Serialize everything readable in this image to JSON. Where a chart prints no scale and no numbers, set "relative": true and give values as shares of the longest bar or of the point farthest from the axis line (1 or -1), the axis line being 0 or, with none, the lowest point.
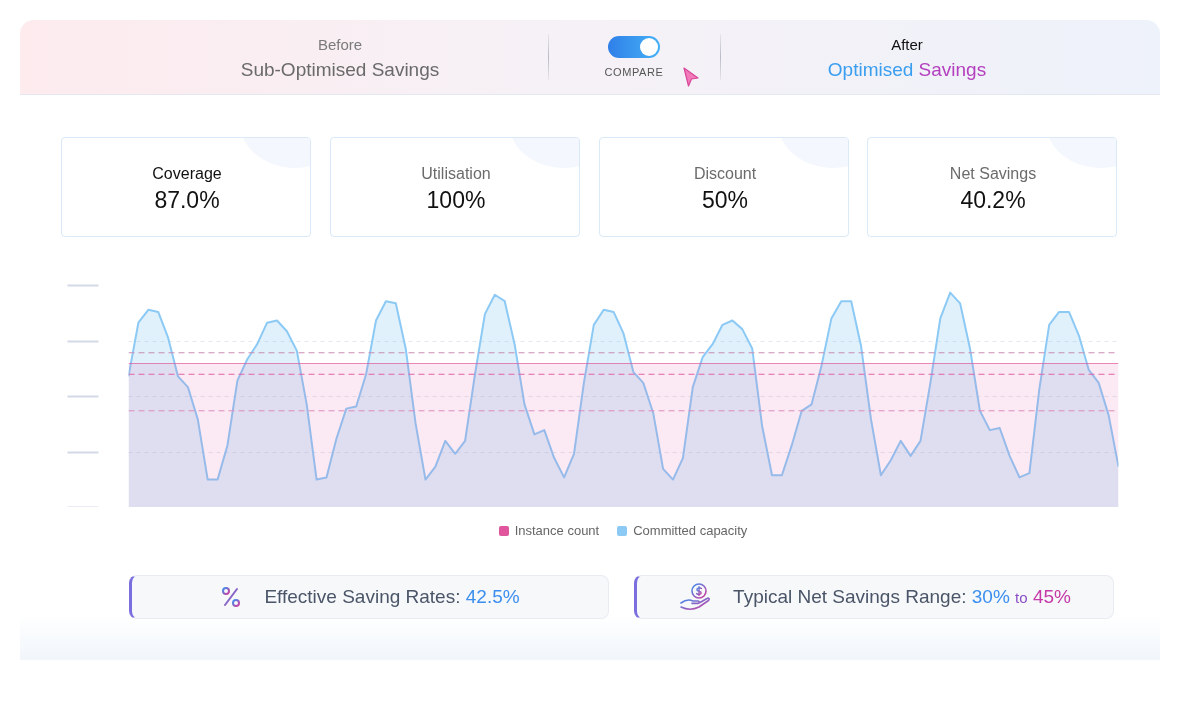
{
  "chart_data": [
    {
      "type": "other",
      "annotations": [
        "Before",
        "Sub-Optimised Savings",
        "COMPARE",
        "After",
        "Optimised Savings"
      ]
    },
    {
      "type": "other",
      "annotations": [
        "Coverage",
        "87.0%",
        "Utilisation",
        "100%",
        "Discount",
        "50%",
        "Net Savings",
        "40.2%"
      ]
    },
    {
      "type": "area",
      "relative": true,
      "categories": [
        null,
        null,
        null,
        null,
        null,
        null,
        null,
        null,
        null,
        null,
        null,
        null,
        null,
        null,
        null,
        null,
        null,
        null,
        null,
        null,
        null,
        null,
        null,
        null,
        null,
        null,
        null,
        null,
        null,
        null,
        null,
        null,
        null,
        null,
        null,
        null,
        null,
        null,
        null,
        null,
        null,
        null,
        null,
        null,
        null,
        null,
        null,
        null,
        null,
        null,
        null,
        null,
        null,
        null,
        null,
        null,
        null,
        null,
        null,
        null,
        null,
        null,
        null,
        null,
        null,
        null,
        null,
        null,
        null,
        null,
        null,
        null,
        null,
        null,
        null,
        null,
        null,
        null,
        null,
        null,
        null,
        null,
        null,
        null,
        null,
        null,
        null,
        null,
        null,
        null,
        null,
        null,
        null,
        null,
        null,
        null,
        null,
        null,
        null,
        null,
        null
      ],
      "series": [
        {
          "name": "Instance count",
          "color": "#e0559b",
          "values": [
            0.67,
            0.67,
            0.67,
            0.67,
            0.67,
            0.67,
            0.67,
            0.67,
            0.67,
            0.67,
            0.67,
            0.67,
            0.67,
            0.67,
            0.67,
            0.67,
            0.67,
            0.67,
            0.67,
            0.67,
            0.67,
            0.67,
            0.67,
            0.67,
            0.67,
            0.67,
            0.67,
            0.67,
            0.67,
            0.67,
            0.67,
            0.67,
            0.67,
            0.67,
            0.67,
            0.67,
            0.67,
            0.67,
            0.67,
            0.67,
            0.67,
            0.67,
            0.67,
            0.67,
            0.67,
            0.67,
            0.67,
            0.67,
            0.67,
            0.67,
            0.67,
            0.67,
            0.67,
            0.67,
            0.67,
            0.67,
            0.67,
            0.67,
            0.67,
            0.67,
            0.67,
            0.67,
            0.67,
            0.67,
            0.67,
            0.67,
            0.67,
            0.67,
            0.67,
            0.67,
            0.67,
            0.67,
            0.67,
            0.67,
            0.67,
            0.67,
            0.67,
            0.67,
            0.67,
            0.67,
            0.67,
            0.67,
            0.67,
            0.67,
            0.67,
            0.67,
            0.67,
            0.67,
            0.67,
            0.67,
            0.67,
            0.67,
            0.67,
            0.67,
            0.67,
            0.67,
            0.67,
            0.67,
            0.67,
            0.67,
            0.67
          ]
        },
        {
          "name": "Committed capacity",
          "color": "#8ccaf5",
          "values": [
            0.61,
            0.86,
            0.92,
            0.91,
            0.79,
            0.61,
            0.56,
            0.41,
            0.13,
            0.13,
            0.29,
            0.59,
            0.69,
            0.76,
            0.86,
            0.87,
            0.82,
            0.73,
            0.48,
            0.13,
            0.14,
            0.32,
            0.46,
            0.47,
            0.62,
            0.87,
            0.96,
            0.95,
            0.74,
            0.39,
            0.13,
            0.19,
            0.31,
            0.25,
            0.31,
            0.62,
            0.9,
            0.99,
            0.96,
            0.76,
            0.48,
            0.34,
            0.36,
            0.23,
            0.14,
            0.25,
            0.58,
            0.85,
            0.92,
            0.91,
            0.81,
            0.63,
            0.58,
            0.44,
            0.18,
            0.13,
            0.23,
            0.56,
            0.7,
            0.76,
            0.85,
            0.87,
            0.83,
            0.74,
            0.38,
            0.15,
            0.15,
            0.29,
            0.45,
            0.48,
            0.66,
            0.88,
            0.96,
            0.96,
            0.75,
            0.41,
            0.15,
            0.22,
            0.31,
            0.24,
            0.31,
            0.58,
            0.88,
            1.0,
            0.95,
            0.74,
            0.45,
            0.36,
            0.37,
            0.24,
            0.14,
            0.16,
            0.55,
            0.85,
            0.91,
            0.91,
            0.8,
            0.64,
            0.58,
            0.43,
            0.19
          ]
        }
      ],
      "ref_lines": [
        {
          "axis": "y",
          "value": 0.72,
          "color": "#c98db3",
          "line_style": "dashed"
        },
        {
          "axis": "y",
          "value": 0.62,
          "color": "#e063a8",
          "line_style": "dashed"
        },
        {
          "axis": "y",
          "value": 0.45,
          "color": "#dc8cbb",
          "line_style": "dashed"
        }
      ],
      "grid": "y",
      "legend": "bottom"
    },
    {
      "type": "other",
      "annotations": [
        "Effective Saving Rates: 42.5%",
        "Typical Net Savings Range: 30% to 45%"
      ]
    }
  ]
}
